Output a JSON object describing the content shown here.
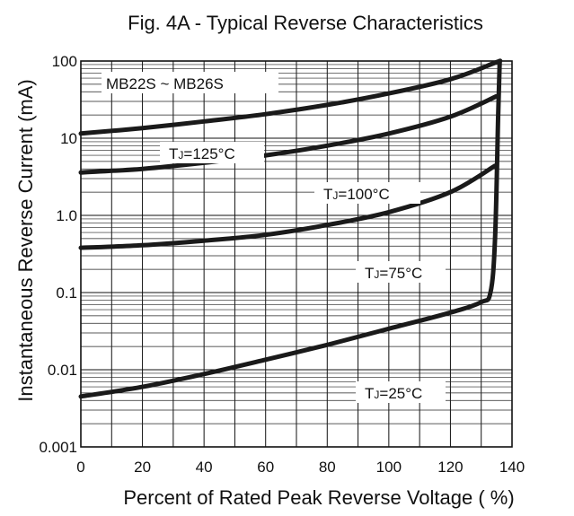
{
  "chart_data": {
    "type": "line",
    "title": "Fig. 4A - Typical Reverse Characteristics",
    "xlabel": "Percent of Rated Peak Reverse Voltage ( %)",
    "ylabel": "Instantaneous Reverse Current (mA)",
    "xlim": [
      0,
      140
    ],
    "ylim": [
      0.001,
      100
    ],
    "yscale": "log",
    "grid": true,
    "x_ticks": [
      "0",
      "20",
      "40",
      "60",
      "80",
      "100",
      "120",
      "140"
    ],
    "y_ticks": [
      "100",
      "10",
      "1.0",
      "0.1",
      "0.01",
      "0.001"
    ],
    "device_label": "MB22S ~ MB26S",
    "series": [
      {
        "name": "TJ=125°C",
        "x": [
          0,
          20,
          40,
          60,
          80,
          100,
          120,
          134.5,
          136
        ],
        "values": [
          11.5,
          13.5,
          16.5,
          20.5,
          27,
          38,
          58,
          95,
          100
        ]
      },
      {
        "name": "TJ=100°C",
        "x": [
          0,
          20,
          40,
          60,
          80,
          100,
          120,
          135
        ],
        "values": [
          3.6,
          4.0,
          4.8,
          6.0,
          8.0,
          11.5,
          19,
          35
        ]
      },
      {
        "name": "TJ=75°C",
        "x": [
          0,
          20,
          40,
          60,
          80,
          100,
          120,
          134.5
        ],
        "values": [
          0.38,
          0.41,
          0.47,
          0.56,
          0.75,
          1.1,
          2.0,
          4.4
        ]
      },
      {
        "name": "TJ=25°C",
        "x": [
          0,
          20,
          40,
          60,
          80,
          100,
          120,
          130,
          133,
          134.5,
          135.5,
          136
        ],
        "values": [
          0.0045,
          0.006,
          0.0088,
          0.0135,
          0.021,
          0.034,
          0.055,
          0.075,
          0.1,
          0.5,
          20,
          100
        ]
      }
    ],
    "curve_labels": [
      {
        "main": "T",
        "sub": "J",
        "rest": "=125°C"
      },
      {
        "main": "T",
        "sub": "J",
        "rest": "=100°C"
      },
      {
        "main": "T",
        "sub": "J",
        "rest": "=75°C"
      },
      {
        "main": "T",
        "sub": "J",
        "rest": "=25°C"
      }
    ]
  }
}
